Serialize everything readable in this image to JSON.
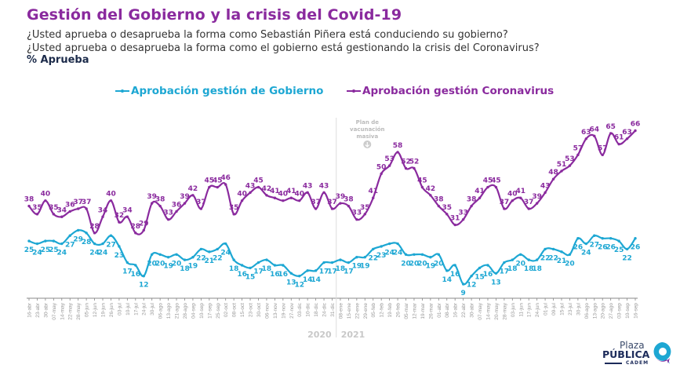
{
  "header": {
    "title": "Gestión del Gobierno y la crisis del Covid-19",
    "question_1": "¿Usted aprueba o desaprueba la forma como Sebastián Piñera está conduciendo su gobierno?",
    "question_2": "¿Usted aprueba o desaprueba la forma como el gobierno está gestionando la crisis del Coronavirus?",
    "measure": "% Aprueba"
  },
  "legend": {
    "gobierno": "Aprobación gestión de Gobierno",
    "coronavirus": "Aprobación gestión Coronavirus"
  },
  "colors": {
    "gobierno": "#1da7d3",
    "coronavirus": "#8a2a9e",
    "axis": "#888888",
    "annotation": "#bbbbbb"
  },
  "annotation": {
    "text_lines": [
      "Plan de",
      "vacunación",
      "masiva"
    ],
    "icon": "arrow-down-circle-icon",
    "at_date": "29-ene"
  },
  "years": [
    "2020",
    "2021"
  ],
  "logo": {
    "line1": "Plaza",
    "line2": "PÚBLICA",
    "line3": "CADEM"
  },
  "chart_data": {
    "type": "line",
    "title": "Gestión del Gobierno y la crisis del Covid-19",
    "xlabel": "",
    "ylabel": "% Aprueba",
    "ylim": [
      0,
      70
    ],
    "grid": false,
    "legend_position": "top",
    "x": [
      "16-abr",
      "23-abr",
      "30-abr",
      "07-may",
      "14-may",
      "22-may",
      "28-may",
      "05-jun",
      "12-jun",
      "19-jun",
      "26-jun",
      "03-jul",
      "10-jul",
      "17-jul",
      "24-jul",
      "30-jul",
      "06-ago",
      "13-ago",
      "21-ago",
      "28-ago",
      "04-sep",
      "10-sep",
      "17-sep",
      "25-sep",
      "02-oct",
      "08-oct",
      "15-oct",
      "23-oct",
      "30-oct",
      "06-nov",
      "13-nov",
      "19-nov",
      "27-nov",
      "03-dic",
      "10-dic",
      "18-dic",
      "24-dic",
      "31-dic",
      "08-ene",
      "15-ene",
      "22-ene",
      "29-ene",
      "05-feb",
      "12-feb",
      "19-feb",
      "26-feb",
      "05-mar",
      "12-mar",
      "19-mar",
      "26-mar",
      "01-abr",
      "08-abr",
      "16-abr",
      "22-abr",
      "30-abr",
      "07-may",
      "14-may",
      "20-may",
      "28-may",
      "03-jun",
      "11-jun",
      "17-jun",
      "24-jun",
      "01-jul",
      "09-jul",
      "15-jul",
      "23-jul",
      "30-jul",
      "06-ago",
      "13-ago",
      "20-ago",
      "27-ago",
      "03-sep",
      "10-sep",
      "16-sep"
    ],
    "year_split_after": "31-dic",
    "series": [
      {
        "name": "Aprobación gestión de Gobierno",
        "values": [
          25,
          24,
          25,
          25,
          24,
          27,
          29,
          28,
          24,
          24,
          27,
          23,
          17,
          16,
          12,
          20,
          20,
          19,
          20,
          18,
          19,
          22,
          21,
          22,
          24,
          18,
          16,
          15,
          17,
          18,
          16,
          16,
          13,
          12,
          14,
          14,
          17,
          17,
          18,
          17,
          19,
          19,
          22,
          23,
          24,
          24,
          20,
          20,
          20,
          19,
          20,
          14,
          16,
          9,
          12,
          15,
          16,
          13,
          17,
          18,
          20,
          18,
          18,
          22,
          22,
          21,
          20,
          26,
          24,
          27,
          26,
          26,
          25,
          22,
          26
        ]
      },
      {
        "name": "Aprobación gestión Coronavirus",
        "values": [
          38,
          35,
          40,
          35,
          34,
          36,
          37,
          37,
          28,
          34,
          40,
          32,
          34,
          28,
          29,
          39,
          38,
          33,
          36,
          39,
          42,
          37,
          45,
          45,
          46,
          35,
          40,
          43,
          45,
          42,
          41,
          40,
          41,
          40,
          43,
          37,
          43,
          37,
          39,
          38,
          33,
          35,
          41,
          50,
          53,
          58,
          52,
          52,
          45,
          42,
          38,
          35,
          31,
          33,
          38,
          41,
          45,
          45,
          37,
          40,
          41,
          37,
          39,
          43,
          48,
          51,
          53,
          57,
          63,
          64,
          57,
          65,
          61,
          63,
          66
        ]
      }
    ]
  }
}
